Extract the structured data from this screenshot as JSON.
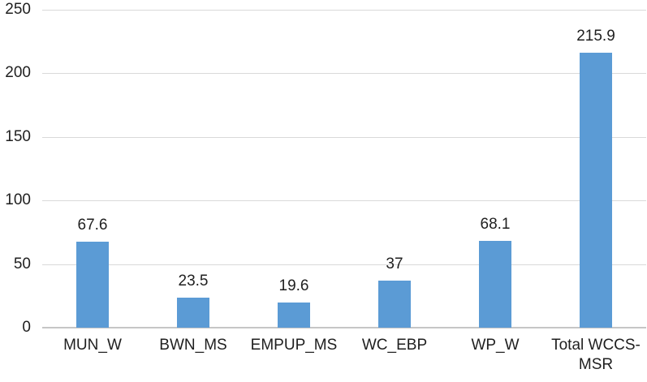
{
  "chart_data": {
    "type": "bar",
    "title": "",
    "xlabel": "",
    "ylabel": "",
    "categories": [
      "MUN_W",
      "BWN_MS",
      "EMPUP_MS",
      "WC_EBP",
      "WP_W",
      "Total WCCS-MSR"
    ],
    "values": [
      67.6,
      23.5,
      19.6,
      37,
      68.1,
      215.9
    ],
    "data_labels": [
      "67.6",
      "23.5",
      "19.6",
      "37",
      "68.1",
      "215.9"
    ],
    "ylim": [
      0,
      250
    ],
    "yticks": [
      0,
      50,
      100,
      150,
      200,
      250
    ],
    "grid": true,
    "legend": "none",
    "colors": {
      "bar": "#5B9BD5",
      "gridline": "#D9D9D9",
      "axis_line": "#C6C6C6",
      "text": "#1f1f1f"
    }
  }
}
